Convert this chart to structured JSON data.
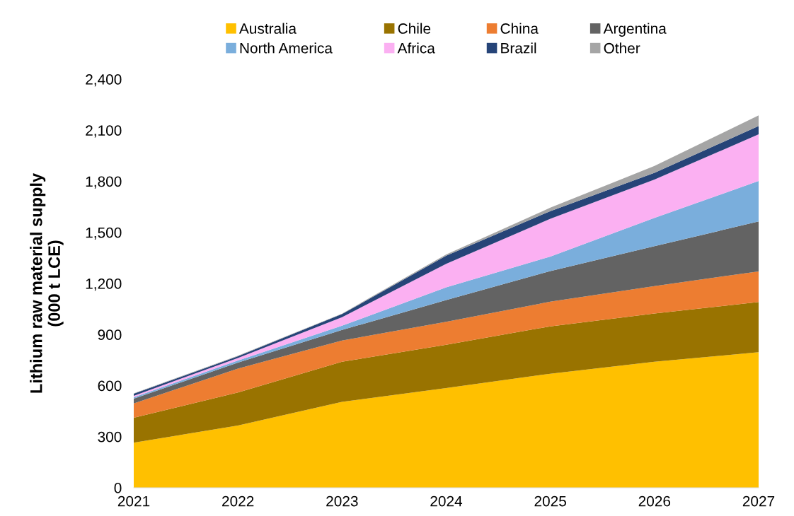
{
  "chart_data": {
    "type": "area",
    "stacked": true,
    "ylabel": "Lithium raw material supply\n(000 t LCE)",
    "x": [
      "2021",
      "2022",
      "2023",
      "2024",
      "2025",
      "2026",
      "2027"
    ],
    "xlim": [
      "2021",
      "2027"
    ],
    "xticks": [
      {
        "value": "2021",
        "label": "2021"
      },
      {
        "value": "2022",
        "label": "2022"
      },
      {
        "value": "2023",
        "label": "2023"
      },
      {
        "value": "2024",
        "label": "2024"
      },
      {
        "value": "2025",
        "label": "2025"
      },
      {
        "value": "2026",
        "label": "2026"
      },
      {
        "value": "2027",
        "label": "2027"
      }
    ],
    "ylim": [
      0,
      2400
    ],
    "yticks": [
      {
        "value": 0,
        "label": "0"
      },
      {
        "value": 300,
        "label": "300"
      },
      {
        "value": 600,
        "label": "600"
      },
      {
        "value": 900,
        "label": "900"
      },
      {
        "value": 1200,
        "label": "1,200"
      },
      {
        "value": 1500,
        "label": "1,500"
      },
      {
        "value": 1800,
        "label": "1,800"
      },
      {
        "value": 2100,
        "label": "2,100"
      },
      {
        "value": 2400,
        "label": "2,400"
      }
    ],
    "grid": false,
    "legend": "top",
    "series": [
      {
        "name": "Australia",
        "color": "#ffc000",
        "values": [
          265,
          365,
          505,
          585,
          670,
          740,
          796
        ]
      },
      {
        "name": "Chile",
        "color": "#997300",
        "values": [
          146,
          195,
          235,
          255,
          278,
          284,
          295
        ]
      },
      {
        "name": "China",
        "color": "#ed7d31",
        "values": [
          84,
          140,
          125,
          135,
          145,
          160,
          180
        ]
      },
      {
        "name": "Argentina",
        "color": "#636363",
        "values": [
          28,
          35,
          62,
          127,
          180,
          235,
          293
        ]
      },
      {
        "name": "North America",
        "color": "#7aaedc",
        "values": [
          9,
          12,
          25,
          75,
          85,
          166,
          238
        ]
      },
      {
        "name": "Africa",
        "color": "#fbb0f2",
        "values": [
          8,
          15,
          50,
          138,
          222,
          225,
          274
        ]
      },
      {
        "name": "Brazil",
        "color": "#264478",
        "values": [
          12,
          10,
          18,
          48,
          45,
          40,
          49
        ]
      },
      {
        "name": "Other",
        "color": "#a5a5a5",
        "values": [
          2,
          3,
          3,
          7,
          20,
          40,
          62
        ]
      }
    ]
  }
}
